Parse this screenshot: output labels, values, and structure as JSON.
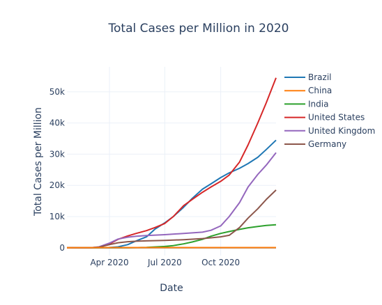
{
  "chart_data": {
    "type": "line",
    "title": "Total Cases per Million in 2020",
    "xlabel": "Date",
    "ylabel": "Total Cases per Million",
    "x_range": [
      "2020-01-22",
      "2020-12-31"
    ],
    "ylim": [
      -2500,
      58000
    ],
    "x_ticks": [
      {
        "date": "2020-04-01",
        "label": "Apr 2020"
      },
      {
        "date": "2020-07-01",
        "label": "Jul 2020"
      },
      {
        "date": "2020-10-01",
        "label": "Oct 2020"
      }
    ],
    "y_ticks": [
      {
        "value": 0,
        "label": "0"
      },
      {
        "value": 10000,
        "label": "10k"
      },
      {
        "value": 20000,
        "label": "20k"
      },
      {
        "value": 30000,
        "label": "30k"
      },
      {
        "value": 40000,
        "label": "40k"
      },
      {
        "value": 50000,
        "label": "50k"
      }
    ],
    "grid": true,
    "legend_position": "right",
    "series": [
      {
        "name": "Brazil",
        "color": "#1f77b4",
        "points": [
          [
            "2020-02-26",
            0
          ],
          [
            "2020-03-15",
            50
          ],
          [
            "2020-04-01",
            100
          ],
          [
            "2020-04-15",
            300
          ],
          [
            "2020-05-01",
            1000
          ],
          [
            "2020-05-15",
            2200
          ],
          [
            "2020-06-01",
            3500
          ],
          [
            "2020-06-15",
            6000
          ],
          [
            "2020-07-01",
            8000
          ],
          [
            "2020-07-15",
            10000
          ],
          [
            "2020-08-01",
            13000
          ],
          [
            "2020-08-15",
            15800
          ],
          [
            "2020-09-01",
            18800
          ],
          [
            "2020-09-15",
            20500
          ],
          [
            "2020-10-01",
            22500
          ],
          [
            "2020-10-15",
            24000
          ],
          [
            "2020-11-01",
            25500
          ],
          [
            "2020-11-15",
            27000
          ],
          [
            "2020-12-01",
            29000
          ],
          [
            "2020-12-15",
            31500
          ],
          [
            "2020-12-31",
            34500
          ]
        ]
      },
      {
        "name": "China",
        "color": "#ff7f0e",
        "points": [
          [
            "2020-01-22",
            0
          ],
          [
            "2020-02-15",
            40
          ],
          [
            "2020-03-01",
            55
          ],
          [
            "2020-04-01",
            58
          ],
          [
            "2020-07-01",
            60
          ],
          [
            "2020-10-01",
            62
          ],
          [
            "2020-12-31",
            64
          ]
        ]
      },
      {
        "name": "India",
        "color": "#2ca02c",
        "points": [
          [
            "2020-01-30",
            0
          ],
          [
            "2020-04-01",
            5
          ],
          [
            "2020-05-01",
            25
          ],
          [
            "2020-06-01",
            140
          ],
          [
            "2020-07-01",
            420
          ],
          [
            "2020-07-15",
            700
          ],
          [
            "2020-08-01",
            1250
          ],
          [
            "2020-08-15",
            1850
          ],
          [
            "2020-09-01",
            2700
          ],
          [
            "2020-09-15",
            3700
          ],
          [
            "2020-10-01",
            4600
          ],
          [
            "2020-10-15",
            5200
          ],
          [
            "2020-11-01",
            5900
          ],
          [
            "2020-11-15",
            6400
          ],
          [
            "2020-12-01",
            6800
          ],
          [
            "2020-12-15",
            7150
          ],
          [
            "2020-12-31",
            7400
          ]
        ]
      },
      {
        "name": "United States",
        "color": "#d62728",
        "points": [
          [
            "2020-01-22",
            0
          ],
          [
            "2020-03-01",
            0
          ],
          [
            "2020-03-15",
            200
          ],
          [
            "2020-04-01",
            1200
          ],
          [
            "2020-04-15",
            2700
          ],
          [
            "2020-05-01",
            3800
          ],
          [
            "2020-05-15",
            4600
          ],
          [
            "2020-06-01",
            5500
          ],
          [
            "2020-06-15",
            6500
          ],
          [
            "2020-07-01",
            7800
          ],
          [
            "2020-07-15",
            10000
          ],
          [
            "2020-08-01",
            13500
          ],
          [
            "2020-08-15",
            15500
          ],
          [
            "2020-09-01",
            17800
          ],
          [
            "2020-09-15",
            19500
          ],
          [
            "2020-10-01",
            21300
          ],
          [
            "2020-10-15",
            23300
          ],
          [
            "2020-11-01",
            27500
          ],
          [
            "2020-11-15",
            33000
          ],
          [
            "2020-12-01",
            40000
          ],
          [
            "2020-12-15",
            46500
          ],
          [
            "2020-12-31",
            54500
          ]
        ]
      },
      {
        "name": "United Kingdom",
        "color": "#9467bd",
        "points": [
          [
            "2020-01-31",
            0
          ],
          [
            "2020-03-01",
            0
          ],
          [
            "2020-03-15",
            300
          ],
          [
            "2020-04-01",
            1500
          ],
          [
            "2020-04-15",
            2800
          ],
          [
            "2020-05-01",
            3400
          ],
          [
            "2020-05-15",
            3700
          ],
          [
            "2020-06-01",
            3900
          ],
          [
            "2020-07-01",
            4200
          ],
          [
            "2020-08-01",
            4600
          ],
          [
            "2020-09-01",
            5000
          ],
          [
            "2020-09-15",
            5600
          ],
          [
            "2020-10-01",
            7000
          ],
          [
            "2020-10-15",
            10000
          ],
          [
            "2020-11-01",
            14500
          ],
          [
            "2020-11-15",
            19500
          ],
          [
            "2020-12-01",
            23500
          ],
          [
            "2020-12-15",
            26500
          ],
          [
            "2020-12-31",
            30500
          ]
        ]
      },
      {
        "name": "Germany",
        "color": "#8c564b",
        "points": [
          [
            "2020-01-27",
            0
          ],
          [
            "2020-03-01",
            0
          ],
          [
            "2020-03-15",
            200
          ],
          [
            "2020-04-01",
            1000
          ],
          [
            "2020-04-15",
            1600
          ],
          [
            "2020-05-01",
            1950
          ],
          [
            "2020-05-15",
            2100
          ],
          [
            "2020-06-01",
            2200
          ],
          [
            "2020-07-01",
            2350
          ],
          [
            "2020-08-01",
            2600
          ],
          [
            "2020-09-01",
            2950
          ],
          [
            "2020-09-15",
            3200
          ],
          [
            "2020-10-01",
            3500
          ],
          [
            "2020-10-15",
            4000
          ],
          [
            "2020-11-01",
            6500
          ],
          [
            "2020-11-15",
            9500
          ],
          [
            "2020-12-01",
            12500
          ],
          [
            "2020-12-15",
            15500
          ],
          [
            "2020-12-31",
            18500
          ]
        ]
      }
    ]
  }
}
